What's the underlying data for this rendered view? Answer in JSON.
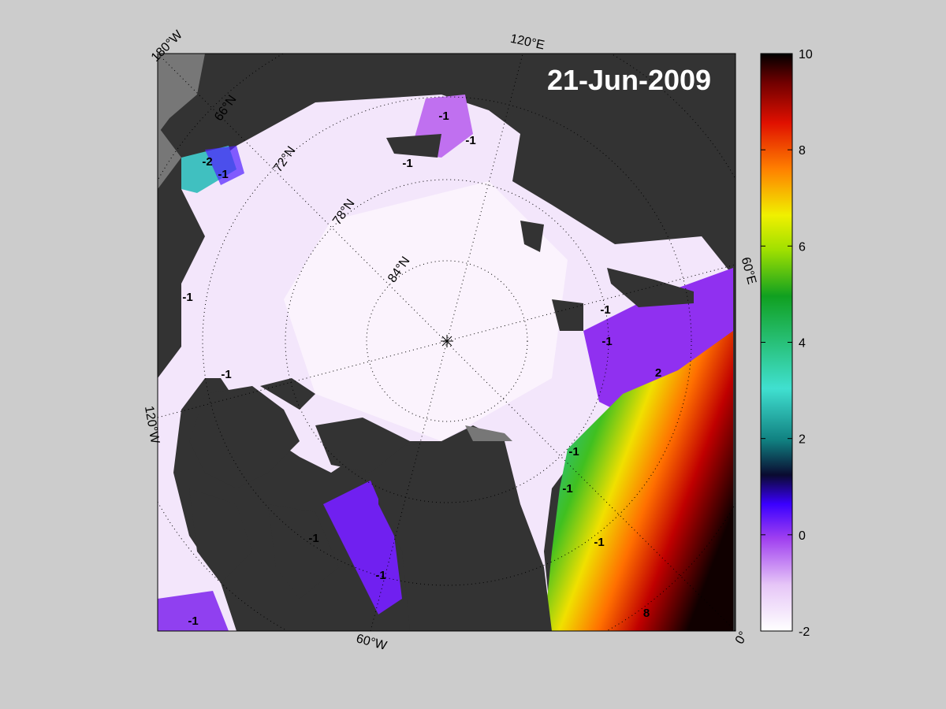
{
  "map": {
    "date": "21-Jun-2009",
    "longitude_labels": [
      "180°W",
      "120°E",
      "60°E",
      "0°",
      "60°W",
      "120°W"
    ],
    "latitude_labels": [
      "66°N",
      "72°N",
      "78°N",
      "84°N"
    ],
    "contour_labels": [
      "-1",
      "-1",
      "-1",
      "-2",
      "-1",
      "-1",
      "-1",
      "-1",
      "-1",
      "-1",
      "2",
      "-1",
      "-1",
      "-1",
      "-1",
      "8",
      "-1"
    ]
  },
  "colorbar": {
    "range": [
      -2,
      10
    ],
    "ticks": [
      -2,
      0,
      2,
      4,
      6,
      8,
      10
    ]
  }
}
